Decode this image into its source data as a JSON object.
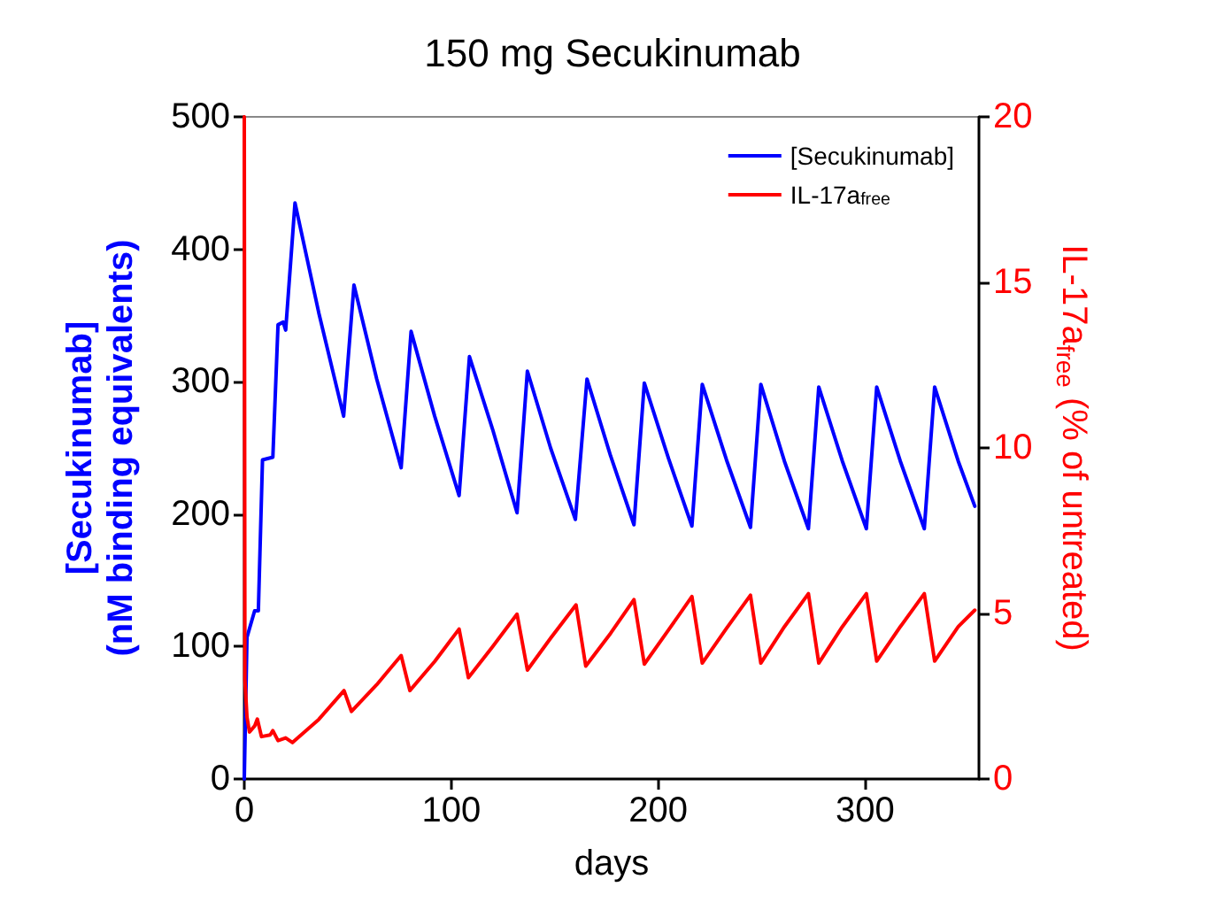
{
  "chart_data": {
    "type": "line",
    "title": "150 mg Secukinumab",
    "xlabel": "days",
    "ylabel": "[Secukinumab]\n(nM binding equivalents)",
    "y2label": "IL-17a$_{free}$ (% of untreated)",
    "xlim": [
      0,
      355
    ],
    "xticks": [
      0,
      100,
      200,
      300
    ],
    "ylim": [
      0,
      500
    ],
    "yticks": [
      0,
      100,
      200,
      300,
      400,
      500
    ],
    "y2lim": [
      0,
      20
    ],
    "y2ticks": [
      0,
      5,
      10,
      15,
      20
    ],
    "grid": false,
    "legend": "top right",
    "marker": "none",
    "line_style": "solid",
    "series": [
      {
        "name": "[Secukinumab]",
        "color": "#0000ff",
        "x": [
          0,
          1.3,
          5,
          6.8,
          8.8,
          13.8,
          16.3,
          18.8,
          20,
          24.5,
          36,
          48,
          53,
          64,
          75.8,
          80.6,
          92,
          103.8,
          108.8,
          120,
          131.8,
          136.8,
          148,
          160,
          165.6,
          177,
          188.3,
          193.3,
          205,
          216.3,
          221.3,
          233,
          244.6,
          249.6,
          261,
          272.6,
          277.6,
          289,
          300.6,
          305.6,
          317,
          328.6,
          333.6,
          345,
          353
        ],
        "values": [
          0,
          107,
          127,
          127,
          241,
          243,
          343,
          345,
          339,
          435,
          352,
          274,
          373,
          302,
          235,
          338,
          274,
          214,
          319,
          264,
          201,
          308,
          250,
          196,
          302,
          244,
          192,
          299,
          242,
          191,
          298,
          241,
          190,
          298,
          240,
          189,
          296,
          240,
          189,
          296,
          240,
          189,
          296,
          240,
          206
        ]
      },
      {
        "name": "IL-17a$_{free}$",
        "color": "#ff0000",
        "axis": "y2",
        "x": [
          0,
          0.3,
          1.3,
          2.5,
          5,
          6.3,
          8.3,
          12.5,
          13.8,
          16.3,
          20,
          23.3,
          36,
          48.2,
          51.8,
          64,
          75.8,
          80,
          92,
          103.8,
          108.3,
          120,
          131.8,
          136.8,
          148,
          160.3,
          165,
          177,
          188.3,
          193.3,
          205,
          216.3,
          221.3,
          233,
          244.6,
          249.6,
          261,
          272.6,
          277.6,
          289,
          300.6,
          305.6,
          317,
          328.6,
          333.6,
          345,
          353
        ],
        "values": [
          20,
          3.0,
          1.87,
          1.42,
          1.6,
          1.81,
          1.28,
          1.33,
          1.46,
          1.16,
          1.24,
          1.1,
          1.8,
          2.67,
          2.04,
          2.85,
          3.73,
          2.67,
          3.55,
          4.53,
          3.06,
          4.0,
          4.98,
          3.29,
          4.25,
          5.26,
          3.41,
          4.4,
          5.42,
          3.47,
          4.5,
          5.51,
          3.5,
          4.55,
          5.55,
          3.5,
          4.6,
          5.6,
          3.5,
          4.6,
          5.6,
          3.56,
          4.6,
          5.6,
          3.56,
          4.6,
          5.1
        ]
      }
    ]
  }
}
